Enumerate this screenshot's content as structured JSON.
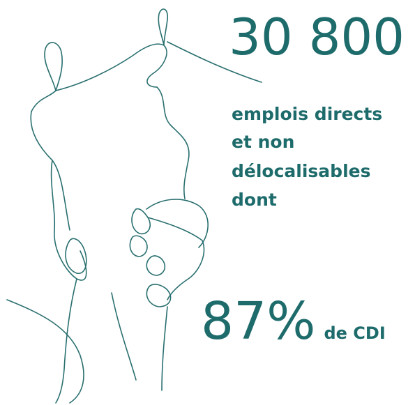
{
  "headline": {
    "number": "30 800",
    "description_lines": [
      "emplois directs",
      "et non",
      "délocalisables",
      "dont"
    ]
  },
  "share": {
    "number": "87%",
    "label": "de CDI"
  }
}
